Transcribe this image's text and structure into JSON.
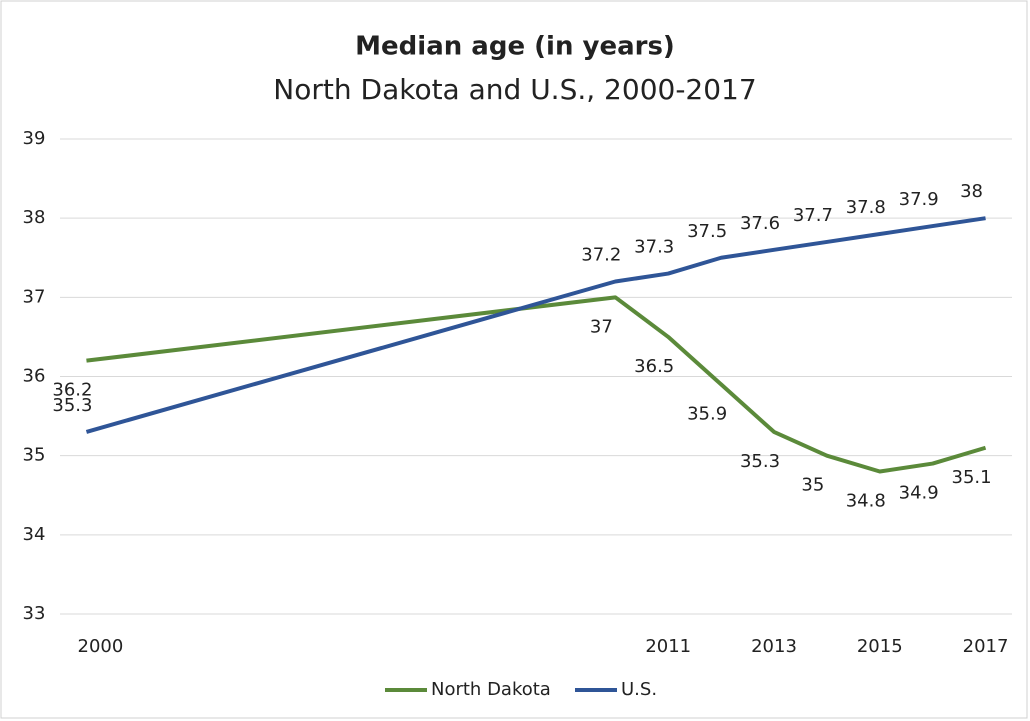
{
  "chart_data": {
    "type": "line",
    "title": "Median age (in years)",
    "subtitle": "North Dakota and U.S., 2000-2017",
    "x": [
      2000,
      2010,
      2011,
      2012,
      2013,
      2014,
      2015,
      2016,
      2017
    ],
    "series": [
      {
        "name": "North Dakota",
        "color": "#5b8a3a",
        "values": [
          36.2,
          37,
          36.5,
          35.9,
          35.3,
          35,
          34.8,
          34.9,
          35.1
        ]
      },
      {
        "name": "U.S.",
        "color": "#2f5597",
        "values": [
          35.3,
          37.2,
          37.3,
          37.5,
          37.6,
          37.7,
          37.8,
          37.9,
          38
        ]
      }
    ],
    "xlim": [
      1999.5,
      2017.5
    ],
    "xticks": [
      2000,
      2011,
      2013,
      2015,
      2017
    ],
    "ylim": [
      33,
      39
    ],
    "yticks": [
      33,
      34,
      35,
      36,
      37,
      38,
      39
    ],
    "grid": true,
    "legend": "bottom"
  }
}
